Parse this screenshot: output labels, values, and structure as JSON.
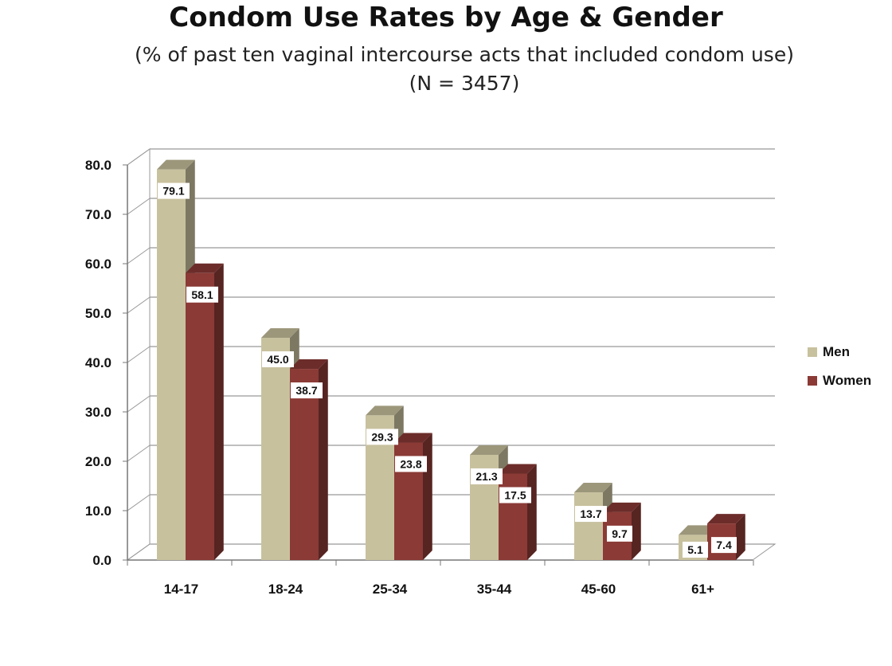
{
  "chart_data": {
    "type": "bar",
    "title": "Condom Use Rates by Age & Gender",
    "subtitle": "(% of past ten vaginal intercourse acts that included condom use)",
    "subtitle2": "(N = 3457)",
    "xlabel": "",
    "ylabel": "",
    "categories": [
      "14-17",
      "18-24",
      "25-34",
      "35-44",
      "45-60",
      "61+"
    ],
    "series": [
      {
        "name": "Men",
        "values": [
          79.1,
          45.0,
          29.3,
          21.3,
          13.7,
          5.1
        ],
        "labels": [
          "79.1",
          "45.0",
          "29.3",
          "21.3",
          "13.7",
          "5.1"
        ],
        "color": "#c8c19e"
      },
      {
        "name": "Women",
        "values": [
          58.1,
          38.7,
          23.8,
          17.5,
          9.7,
          7.4
        ],
        "labels": [
          "58.1",
          "38.7",
          "23.8",
          "17.5",
          "9.7",
          "7.4"
        ],
        "color": "#8b3a36"
      }
    ],
    "ylim": [
      0,
      80
    ],
    "yticks": [
      "0.0",
      "10.0",
      "20.0",
      "30.0",
      "40.0",
      "50.0",
      "60.0",
      "70.0",
      "80.0"
    ],
    "grid": true,
    "legend": "right",
    "style": "3d"
  }
}
